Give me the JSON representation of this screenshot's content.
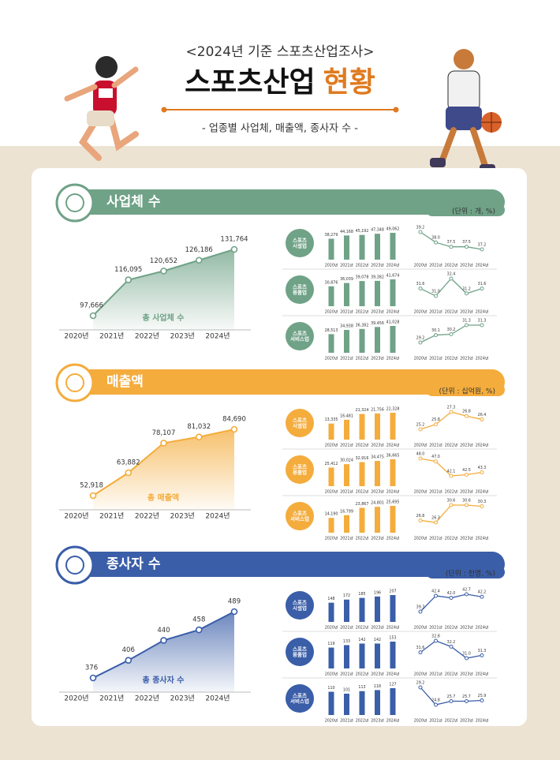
{
  "header": {
    "subtitle": "<2024년 기준 스포츠산업조사>",
    "title_main": "스포츠산업",
    "title_accent": "현황",
    "description": "- 업종별 사업체, 매출액, 종사자 수 -"
  },
  "sections": [
    {
      "title": "사업체 수",
      "unit": "(단위 : 개, %)",
      "color": "#6fa287",
      "total": {
        "type": "area",
        "label": "총 사업체 수",
        "x": [
          "2020년",
          "2021년",
          "2022년",
          "2023년",
          "2024년"
        ],
        "values": [
          97666,
          116095,
          120652,
          126186,
          131764
        ],
        "value_labels": [
          "97,666",
          "116,095",
          "120,652",
          "126,186",
          "131,764"
        ]
      },
      "rows": [
        {
          "label": "스포츠\n시설업",
          "bars": {
            "type": "bar",
            "x": [
              "2020년",
              "2021년",
              "2022년",
              "2023년",
              "2024년"
            ],
            "values": [
              38279,
              44168,
              45192,
              47348,
              49062
            ],
            "value_labels": [
              "38,279",
              "44,168",
              "45,192",
              "47,348",
              "49,062"
            ]
          },
          "shares": {
            "type": "line",
            "x": [
              "2020년",
              "2021년",
              "2022년",
              "2023년",
              "2024년"
            ],
            "values": [
              39.2,
              38.0,
              37.5,
              37.5,
              37.2
            ],
            "value_labels": [
              "39.2",
              "38.0",
              "37.5",
              "37.5",
              "37.2"
            ]
          }
        },
        {
          "label": "스포츠\n용품업",
          "bars": {
            "type": "bar",
            "x": [
              "2020년",
              "2021년",
              "2022년",
              "2023년",
              "2024년"
            ],
            "values": [
              30876,
              36039,
              39078,
              39382,
              41674
            ],
            "value_labels": [
              "30,876",
              "36,039",
              "39,078",
              "39,382",
              "41,674"
            ]
          },
          "shares": {
            "type": "line",
            "x": [
              "2020년",
              "2021년",
              "2022년",
              "2023년",
              "2024년"
            ],
            "values": [
              31.6,
              31.0,
              32.4,
              31.2,
              31.6
            ],
            "value_labels": [
              "31.6",
              "31.0",
              "32.4",
              "31.2",
              "31.6"
            ]
          }
        },
        {
          "label": "스포츠\n서비스업",
          "bars": {
            "type": "bar",
            "x": [
              "2020년",
              "2021년",
              "2022년",
              "2023년",
              "2024년"
            ],
            "values": [
              28513,
              34938,
              36382,
              39456,
              41028
            ],
            "value_labels": [
              "28,513",
              "34,938",
              "36,382",
              "39,456",
              "41,028"
            ]
          },
          "shares": {
            "type": "line",
            "x": [
              "2020년",
              "2021년",
              "2022년",
              "2023년",
              "2024년"
            ],
            "values": [
              29.2,
              30.1,
              30.2,
              31.3,
              31.3
            ],
            "value_labels": [
              "29.2",
              "30.1",
              "30.2",
              "31.3",
              "31.3"
            ]
          }
        }
      ]
    },
    {
      "title": "매출액",
      "unit": "(단위 : 십억원, %)",
      "color": "#f4ac3c",
      "total": {
        "type": "area",
        "label": "총 매출액",
        "x": [
          "2020년",
          "2021년",
          "2022년",
          "2023년",
          "2024년"
        ],
        "values": [
          52918,
          63882,
          78107,
          81032,
          84690
        ],
        "value_labels": [
          "52,918",
          "63,882",
          "78,107",
          "81,032",
          "84,690"
        ]
      },
      "rows": [
        {
          "label": "스포츠\n시설업",
          "bars": {
            "type": "bar",
            "x": [
              "2020년",
              "2021년",
              "2022년",
              "2023년",
              "2024년"
            ],
            "values": [
              13335,
              16481,
              21324,
              21756,
              22328
            ],
            "value_labels": [
              "13,335",
              "16,481",
              "21,324",
              "21,756",
              "22,328"
            ]
          },
          "shares": {
            "type": "line",
            "x": [
              "2020년",
              "2021년",
              "2022년",
              "2023년",
              "2024년"
            ],
            "values": [
              25.2,
              25.8,
              27.3,
              26.8,
              26.4
            ],
            "value_labels": [
              "25.2",
              "25.8",
              "27.3",
              "26.8",
              "26.4"
            ]
          }
        },
        {
          "label": "스포츠\n용품업",
          "bars": {
            "type": "bar",
            "x": [
              "2020년",
              "2021년",
              "2022년",
              "2023년",
              "2024년"
            ],
            "values": [
              25412,
              30024,
              32916,
              34475,
              36665
            ],
            "value_labels": [
              "25,412",
              "30,024",
              "32,916",
              "34,475",
              "36,665"
            ]
          },
          "shares": {
            "type": "line",
            "x": [
              "2020년",
              "2021년",
              "2022년",
              "2023년",
              "2024년"
            ],
            "values": [
              48.0,
              47.0,
              42.1,
              42.5,
              43.3
            ],
            "value_labels": [
              "48.0",
              "47.0",
              "42.1",
              "42.5",
              "43.3"
            ]
          }
        },
        {
          "label": "스포츠\n서비스업",
          "bars": {
            "type": "bar",
            "x": [
              "2020년",
              "2021년",
              "2022년",
              "2023년",
              "2024년"
            ],
            "values": [
              14190,
              16799,
              23867,
              24801,
              25695
            ],
            "value_labels": [
              "14,190",
              "16,799",
              "23,867",
              "24,801",
              "25,695"
            ]
          },
          "shares": {
            "type": "line",
            "x": [
              "2020년",
              "2021년",
              "2022년",
              "2023년",
              "2024년"
            ],
            "values": [
              26.8,
              26.3,
              30.6,
              30.6,
              30.3
            ],
            "value_labels": [
              "26.8",
              "26.3",
              "30.6",
              "30.6",
              "30.3"
            ]
          }
        }
      ]
    },
    {
      "title": "종사자 수",
      "unit": "(단위 : 천명, %)",
      "color": "#3a5ea8",
      "total": {
        "type": "area",
        "label": "총 종사자 수",
        "x": [
          "2020년",
          "2021년",
          "2022년",
          "2023년",
          "2024년"
        ],
        "values": [
          376,
          406,
          440,
          458,
          489
        ]
      },
      "rows": [
        {
          "label": "스포츠\n시설업",
          "bars": {
            "type": "bar",
            "x": [
              "2020년",
              "2021년",
              "2022년",
              "2023년",
              "2024년"
            ],
            "values": [
              148,
              172,
              185,
              196,
              207
            ]
          },
          "shares": {
            "type": "line",
            "x": [
              "2020년",
              "2021년",
              "2022년",
              "2023년",
              "2024년"
            ],
            "values": [
              39.3,
              42.4,
              42.0,
              42.7,
              42.2
            ],
            "value_labels": [
              "39.3",
              "42.4",
              "42.0",
              "42.7",
              "42.2"
            ]
          }
        },
        {
          "label": "스포츠\n용품업",
          "bars": {
            "type": "bar",
            "x": [
              "2020년",
              "2021년",
              "2022년",
              "2023년",
              "2024년"
            ],
            "values": [
              119,
              133,
              142,
              142,
              153
            ]
          },
          "shares": {
            "type": "line",
            "x": [
              "2020년",
              "2021년",
              "2022년",
              "2023년",
              "2024년"
            ],
            "values": [
              31.6,
              32.8,
              32.2,
              31.0,
              31.3
            ],
            "value_labels": [
              "31.6",
              "32.8",
              "32.2",
              "31.0",
              "31.3"
            ]
          }
        },
        {
          "label": "스포츠\n서비스업",
          "bars": {
            "type": "bar",
            "x": [
              "2020년",
              "2021년",
              "2022년",
              "2023년",
              "2024년"
            ],
            "values": [
              110,
              101,
              113,
              118,
              127
            ]
          },
          "shares": {
            "type": "line",
            "x": [
              "2020년",
              "2021년",
              "2022년",
              "2023년",
              "2024년"
            ],
            "values": [
              29.2,
              24.8,
              25.7,
              25.7,
              25.9
            ],
            "value_labels": [
              "29.2",
              "24.8",
              "25.7",
              "25.7",
              "25.9"
            ]
          }
        }
      ]
    }
  ]
}
